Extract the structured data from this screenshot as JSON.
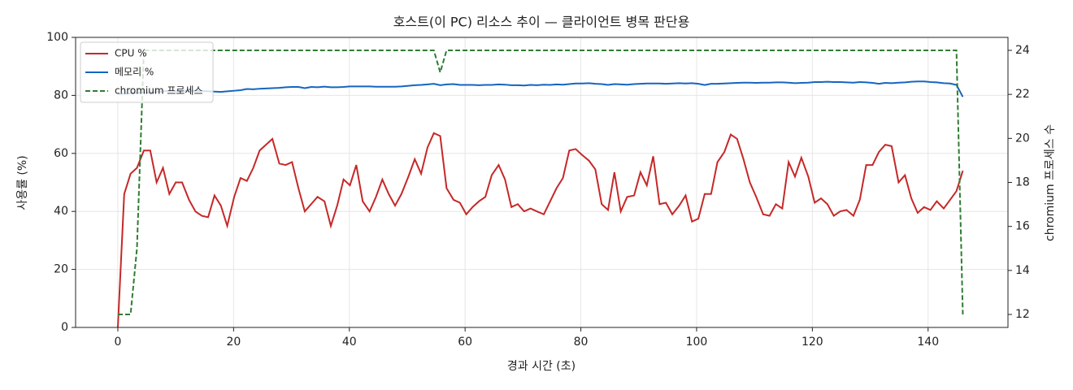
{
  "chart_data": {
    "type": "line",
    "title": "호스트(이 PC) 리소스 추이 — 클라이언트 병목 판단용",
    "xlabel": "경과 시간 (초)",
    "ylabel": "사용률 (%)",
    "y2label": "chromium 프로세스 수",
    "x": [
      0,
      1.1,
      2.2,
      3.3,
      4.5,
      5.6,
      6.7,
      7.8,
      8.9,
      10.0,
      11.1,
      12.3,
      13.4,
      14.5,
      15.6,
      16.7,
      17.8,
      18.9,
      20.1,
      21.2,
      22.3,
      23.4,
      24.5,
      25.6,
      26.7,
      27.9,
      29.0,
      30.1,
      31.2,
      32.3,
      33.4,
      34.5,
      35.7,
      36.8,
      37.9,
      39.0,
      40.1,
      41.2,
      42.3,
      43.5,
      44.6,
      45.7,
      46.8,
      47.9,
      49.0,
      50.2,
      51.3,
      52.4,
      53.5,
      54.6,
      55.7,
      56.8,
      58.0,
      59.1,
      60.2,
      61.3,
      62.4,
      63.5,
      64.6,
      65.8,
      66.9,
      68.0,
      69.1,
      70.2,
      71.3,
      72.4,
      73.6,
      74.7,
      75.8,
      76.9,
      78.0,
      79.1,
      80.2,
      81.4,
      82.5,
      83.6,
      84.7,
      85.8,
      86.9,
      88.0,
      89.2,
      90.3,
      91.4,
      92.5,
      93.6,
      94.7,
      95.8,
      97.0,
      98.1,
      99.2,
      100.3,
      101.4,
      102.5,
      103.6,
      104.8,
      105.9,
      107.0,
      108.1,
      109.2,
      110.3,
      111.5,
      112.6,
      113.7,
      114.8,
      115.9,
      117.0,
      118.1,
      119.3,
      120.4,
      121.5,
      122.6,
      123.7,
      124.8,
      125.9,
      127.1,
      128.2,
      129.3,
      130.4,
      131.5,
      132.6,
      133.7,
      134.9,
      136.0,
      137.1,
      138.2,
      139.3,
      140.4,
      141.5,
      142.7,
      143.8,
      144.9,
      146.0
    ],
    "series": [
      {
        "name": "CPU %",
        "color": "#c62828",
        "style": "solid",
        "values": [
          0,
          46,
          53,
          55,
          61,
          61,
          50,
          55,
          46,
          50,
          50,
          44,
          40,
          38.5,
          38,
          45.5,
          42,
          35,
          45,
          51.5,
          50.5,
          55,
          61,
          63,
          65,
          56.5,
          56,
          57,
          48,
          40,
          42.5,
          45,
          43.5,
          35,
          42,
          51,
          49,
          56,
          43.5,
          40,
          45,
          51,
          46,
          42,
          46,
          52,
          58,
          53,
          62,
          67,
          66,
          48,
          44,
          43,
          39,
          41.5,
          43.5,
          45,
          52.5,
          56,
          51,
          41.5,
          42.5,
          40,
          41,
          40,
          39,
          43.5,
          48,
          51.5,
          61,
          61.5,
          59.5,
          57.5,
          54.5,
          42.5,
          40.5,
          53.5,
          40,
          45,
          45.5,
          53.5,
          49,
          59,
          42.5,
          43,
          39,
          42,
          45.5,
          36.5,
          37.5,
          46,
          46,
          57,
          60.5,
          66.5,
          65,
          58,
          50,
          45,
          39,
          38.5,
          42.5,
          41,
          57,
          52,
          58.5,
          52,
          43,
          44.5,
          42.5,
          38.5,
          40,
          40.5,
          38.5,
          44,
          56,
          56,
          60.5,
          63,
          62.5,
          50,
          52.5,
          44.5,
          39.5,
          41.5,
          40.5,
          43.5,
          41,
          44,
          47,
          54
        ]
      },
      {
        "name": "메모리 %",
        "color": "#1565c0",
        "style": "solid",
        "values": [
          80.5,
          80.6,
          80.7,
          80.8,
          80.9,
          81.0,
          81.2,
          81.4,
          81.5,
          81.5,
          81.6,
          81.6,
          81.5,
          81.5,
          81.4,
          81.3,
          81.2,
          81.4,
          81.6,
          81.8,
          82.2,
          82.1,
          82.3,
          82.4,
          82.5,
          82.6,
          82.8,
          82.9,
          82.9,
          82.5,
          82.9,
          82.8,
          83.0,
          82.8,
          82.8,
          82.9,
          83.1,
          83.1,
          83.1,
          83.1,
          83.0,
          83.0,
          83.0,
          83.0,
          83.1,
          83.3,
          83.5,
          83.6,
          83.8,
          84.0,
          83.5,
          83.8,
          83.9,
          83.6,
          83.6,
          83.6,
          83.5,
          83.6,
          83.6,
          83.8,
          83.7,
          83.5,
          83.5,
          83.4,
          83.6,
          83.5,
          83.7,
          83.6,
          83.8,
          83.7,
          83.9,
          84.1,
          84.1,
          84.2,
          84.0,
          83.9,
          83.6,
          83.9,
          83.8,
          83.7,
          83.9,
          84.0,
          84.1,
          84.1,
          84.1,
          84.0,
          84.1,
          84.2,
          84.1,
          84.2,
          84.0,
          83.6,
          84.0,
          84.0,
          84.1,
          84.2,
          84.3,
          84.4,
          84.4,
          84.3,
          84.4,
          84.4,
          84.5,
          84.5,
          84.4,
          84.2,
          84.3,
          84.4,
          84.6,
          84.6,
          84.7,
          84.6,
          84.6,
          84.5,
          84.4,
          84.6,
          84.5,
          84.3,
          84.0,
          84.3,
          84.2,
          84.4,
          84.5,
          84.7,
          84.8,
          84.8,
          84.6,
          84.5,
          84.2,
          84.1,
          83.6,
          79.5
        ]
      },
      {
        "name": "chromium 프로세스",
        "color": "#2e7d32",
        "style": "dashed",
        "axis": "y2",
        "values": [
          12,
          12,
          12,
          15,
          24,
          24,
          24,
          24,
          24,
          24,
          24,
          24,
          24,
          24,
          24,
          24,
          24,
          24,
          24,
          24,
          24,
          24,
          24,
          24,
          24,
          24,
          24,
          24,
          24,
          24,
          24,
          24,
          24,
          24,
          24,
          24,
          24,
          24,
          24,
          24,
          24,
          24,
          24,
          24,
          24,
          24,
          24,
          24,
          24,
          24,
          23,
          24,
          24,
          24,
          24,
          24,
          24,
          24,
          24,
          24,
          24,
          24,
          24,
          24,
          24,
          24,
          24,
          24,
          24,
          24,
          24,
          24,
          24,
          24,
          24,
          24,
          24,
          24,
          24,
          24,
          24,
          24,
          24,
          24,
          24,
          24,
          24,
          24,
          24,
          24,
          24,
          24,
          24,
          24,
          24,
          24,
          24,
          24,
          24,
          24,
          24,
          24,
          24,
          24,
          24,
          24,
          24,
          24,
          24,
          24,
          24,
          24,
          24,
          24,
          24,
          24,
          24,
          24,
          24,
          24,
          24,
          24,
          24,
          24,
          24,
          24,
          24,
          24,
          24,
          24,
          24,
          12
        ]
      }
    ],
    "xlim": [
      -7.3,
      153.8
    ],
    "xticks": [
      0,
      20,
      40,
      60,
      80,
      100,
      120,
      140
    ],
    "ylim": [
      0,
      100
    ],
    "yticks": [
      0,
      20,
      40,
      60,
      80,
      100
    ],
    "y2lim": [
      11.41,
      24.59
    ],
    "y2ticks": [
      12,
      14,
      16,
      18,
      20,
      22,
      24
    ],
    "grid": true,
    "legend": "upper-left"
  }
}
